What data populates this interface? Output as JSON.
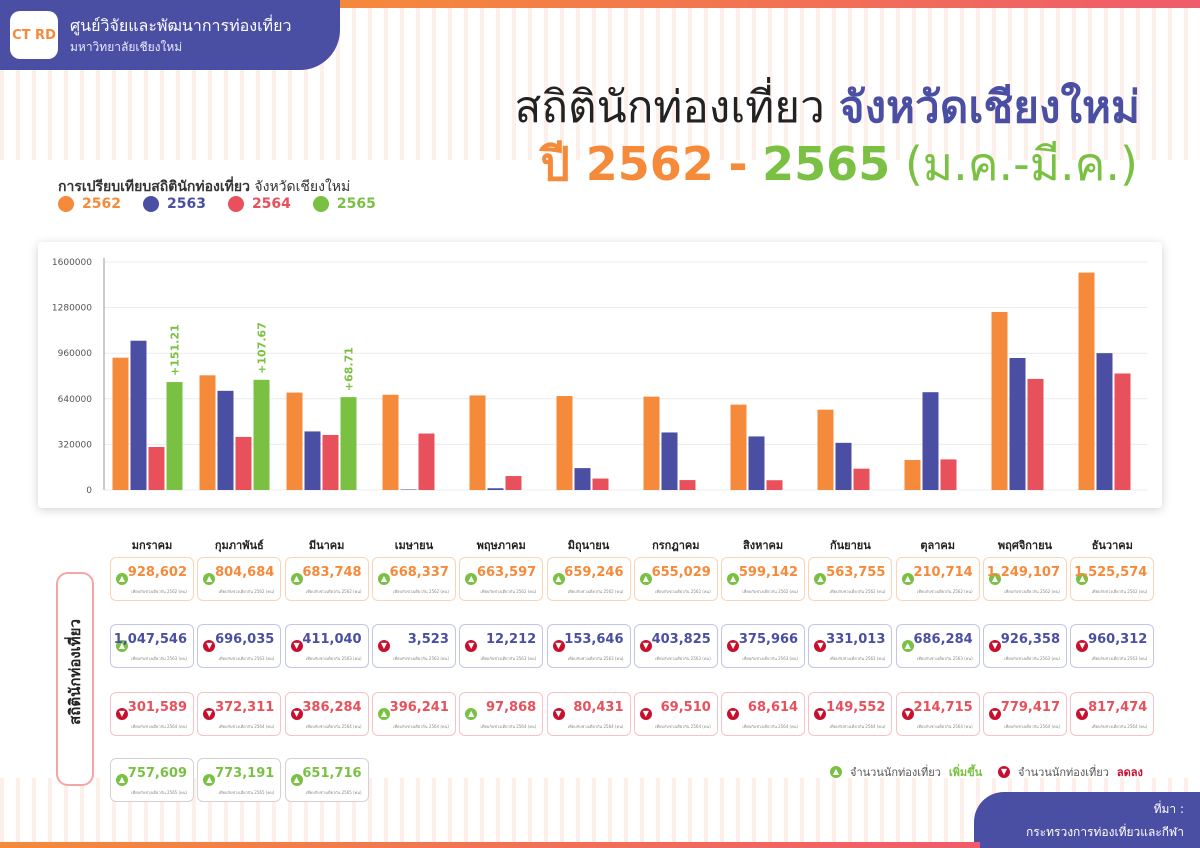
{
  "org": {
    "logo_text": "CT RD",
    "name": "ศูนย์วิจัยและพัฒนาการท่องเที่ยว",
    "sub": "มหาวิทยาลัยเชียงใหม่"
  },
  "title": {
    "line1_a": "สถิตินักท่องเที่ยว",
    "line1_b": "จังหวัดเชียงใหม่",
    "line2_a": "ปี 2562",
    "line2_dash": "-",
    "line2_b": "2565",
    "line2_c": "(ม.ค.-มี.ค.)"
  },
  "legend": {
    "title_bold": "การเปรียบเทียบสถิตินักท่องเที่ยว",
    "title_rest": "จังหวัดเชียงใหม่"
  },
  "side_label": "สถิตินักท่องเที่ยว",
  "keys": {
    "up_text": "จำนวนนักท่องเที่ยว",
    "up_word": "เพิ่มขึ้น",
    "down_text": "จำนวนนักท่องเที่ยว",
    "down_word": "ลดลง"
  },
  "source": {
    "label": "ที่มา :",
    "name": "กระทรวงการท่องเที่ยวและกีฬา"
  },
  "colors": {
    "2562": "#f58a3a",
    "2563": "#4b4fa3",
    "2564": "#e8505b",
    "2565": "#7ac143"
  },
  "cell_notes": {
    "2562": "เทียบกับช่วงเดียวกัน 2562 (คน)",
    "2563": "เทียบกับช่วงเดียวกัน 2563 (คน)",
    "2564": "เทียบกับช่วงเดียวกัน 2564 (คน)",
    "2565": "เทียบกับช่วงเดียวกัน 2565 (คน)"
  },
  "chart_data": {
    "type": "bar",
    "categories": [
      "มกราคม",
      "กุมภาพันธ์",
      "มีนาคม",
      "เมษายน",
      "พฤษภาคม",
      "มิถุนายน",
      "กรกฎาคม",
      "สิงหาคม",
      "กันยายน",
      "ตุลาคม",
      "พฤศจิกายน",
      "ธันวาคม"
    ],
    "series": [
      {
        "name": "2562",
        "values": [
          928602,
          804684,
          683748,
          668337,
          663597,
          659246,
          655029,
          599142,
          563755,
          210714,
          1249107,
          1525574
        ],
        "labels": [
          "928,602",
          "804,684",
          "683,748",
          "668,337",
          "663,597",
          "659,246",
          "655,029",
          "599,142",
          "563,755",
          "210,714",
          "1,249,107",
          "1,525,574"
        ],
        "trend": [
          null,
          null,
          null,
          null,
          null,
          null,
          null,
          null,
          null,
          null,
          null,
          null
        ]
      },
      {
        "name": "2563",
        "values": [
          1047546,
          696035,
          411040,
          3523,
          12212,
          153646,
          403825,
          375966,
          331013,
          686284,
          926358,
          960312
        ],
        "labels": [
          "1,047,546",
          "696,035",
          "411,040",
          "3,523",
          "12,212",
          "153,646",
          "403,825",
          "375,966",
          "331,013",
          "686,284",
          "926,358",
          "960,312"
        ],
        "trend": [
          "up",
          "down",
          "down",
          "down",
          "down",
          "down",
          "down",
          "down",
          "down",
          "up",
          "down",
          "down"
        ]
      },
      {
        "name": "2564",
        "values": [
          301589,
          372311,
          386284,
          396241,
          97868,
          80431,
          69510,
          68614,
          149552,
          214715,
          779417,
          817474
        ],
        "labels": [
          "301,589",
          "372,311",
          "386,284",
          "396,241",
          "97,868",
          "80,431",
          "69,510",
          "68,614",
          "149,552",
          "214,715",
          "779,417",
          "817,474"
        ],
        "trend": [
          "down",
          "down",
          "down",
          "up",
          "up",
          "down",
          "down",
          "down",
          "down",
          "down",
          "down",
          "down"
        ]
      },
      {
        "name": "2565",
        "values": [
          757609,
          773191,
          651716,
          null,
          null,
          null,
          null,
          null,
          null,
          null,
          null,
          null
        ],
        "labels": [
          "757,609",
          "773,191",
          "651,716"
        ],
        "trend": [
          "up",
          "up",
          "up"
        ]
      }
    ],
    "annotations": [
      {
        "category": "มกราคม",
        "text": "+151.21"
      },
      {
        "category": "กุมภาพันธ์",
        "text": "+107.67"
      },
      {
        "category": "มีนาคม",
        "text": "+68.71"
      }
    ],
    "ylim": [
      0,
      1600000
    ],
    "yticks": [
      0,
      320000,
      640000,
      960000,
      1280000,
      1600000
    ],
    "ytick_labels": [
      "0",
      "320000",
      "640000",
      "960000",
      "1280000",
      "1600000"
    ],
    "grid": true,
    "legend_position": "top-left"
  }
}
